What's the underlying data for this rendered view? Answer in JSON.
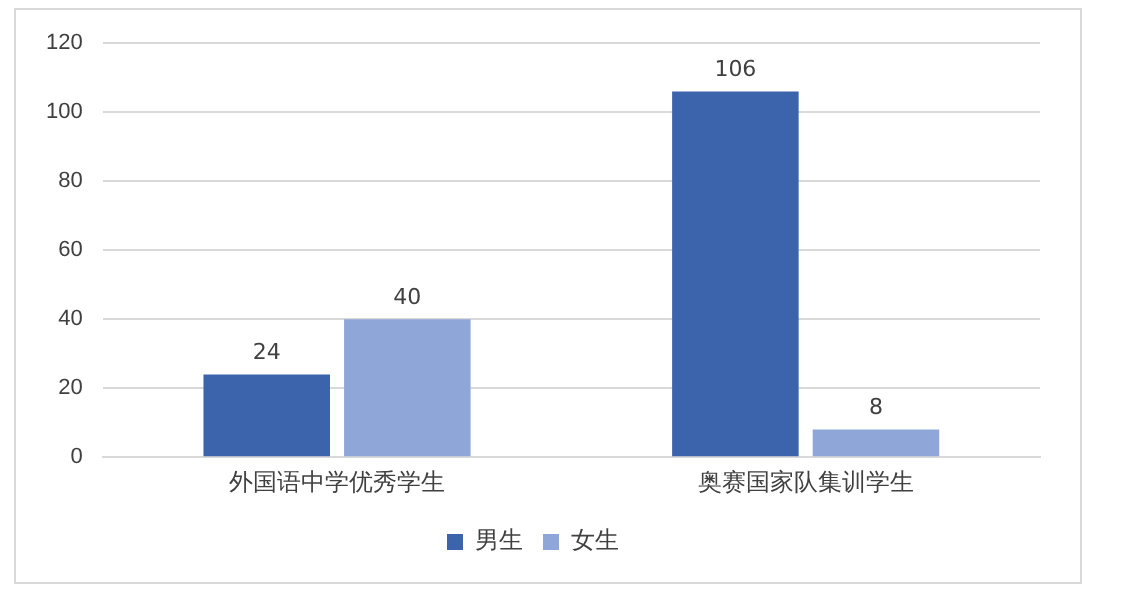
{
  "chart_data": {
    "type": "bar",
    "categories": [
      "外国语中学优秀学生",
      "奥赛国家队集训学生"
    ],
    "series": [
      {
        "name": "男生",
        "color": "#3c64ad",
        "values": [
          24,
          106
        ]
      },
      {
        "name": "女生",
        "color": "#8fa7d8",
        "values": [
          40,
          8
        ]
      }
    ],
    "ylim": [
      0,
      120
    ],
    "yticks": [
      0,
      20,
      40,
      60,
      80,
      100,
      120
    ],
    "grid": "y",
    "legend": "bottom",
    "data_labels": true
  }
}
